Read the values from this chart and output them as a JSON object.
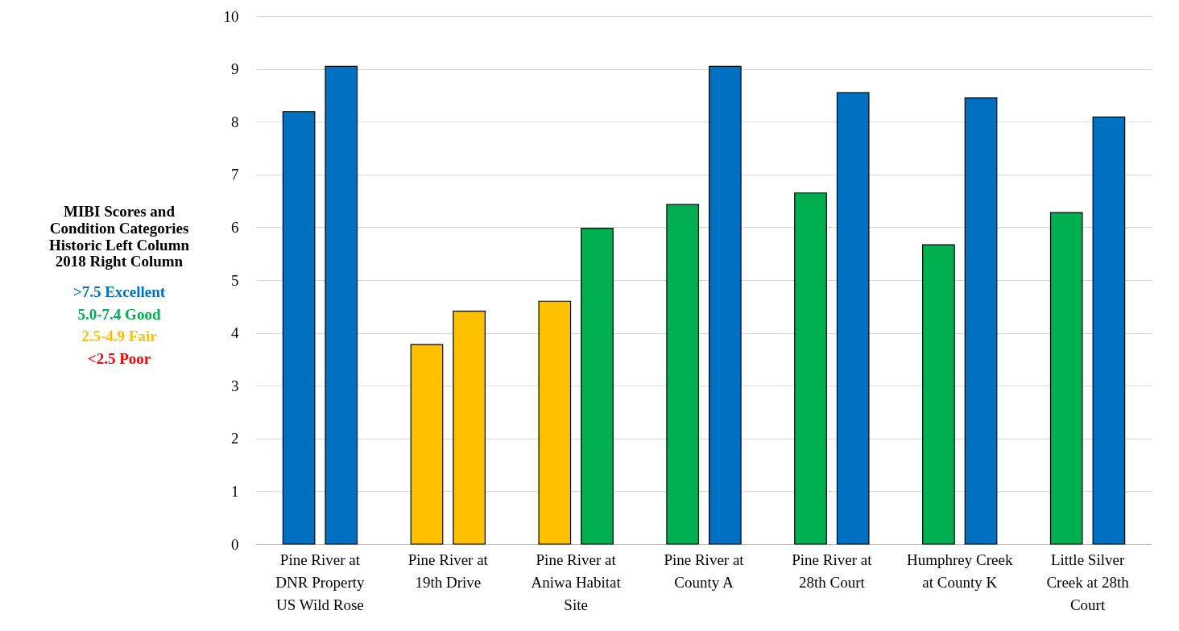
{
  "chart_data": {
    "type": "bar",
    "ylabel": "MIBI Scores and\nCondition Categories\nHistoric Left Column\n2018 Right Column",
    "annotations": [
      ">7.5 Excellent",
      "5.0-7.4 Good",
      "2.5-4.9 Fair",
      "<2.5 Poor"
    ],
    "categories": [
      "Pine River at DNR Property US Wild Rose",
      "Pine River at 19th Drive",
      "Pine River at Aniwa Habitat Site",
      "Pine River at County A",
      "Pine River at 28th Court",
      "Humphrey Creek at County K",
      "Little Silver Creek at 28th Court"
    ],
    "series": [
      {
        "values": [
          8.19,
          3.78,
          4.6,
          6.43,
          6.65,
          5.67,
          6.28
        ],
        "colors": [
          "#0070c0",
          "#ffc000",
          "#ffc000",
          "#00b050",
          "#00b050",
          "#00b050",
          "#00b050"
        ]
      },
      {
        "values": [
          9.05,
          4.41,
          5.98,
          9.05,
          8.55,
          8.45,
          8.09
        ],
        "colors": [
          "#0070c0",
          "#ffc000",
          "#00b050",
          "#0070c0",
          "#0070c0",
          "#0070c0",
          "#0070c0"
        ]
      }
    ],
    "ylim": [
      0,
      10
    ],
    "yticks": [
      0,
      1,
      2,
      3,
      4,
      5,
      6,
      7,
      8,
      9,
      10
    ],
    "grid": "y"
  }
}
